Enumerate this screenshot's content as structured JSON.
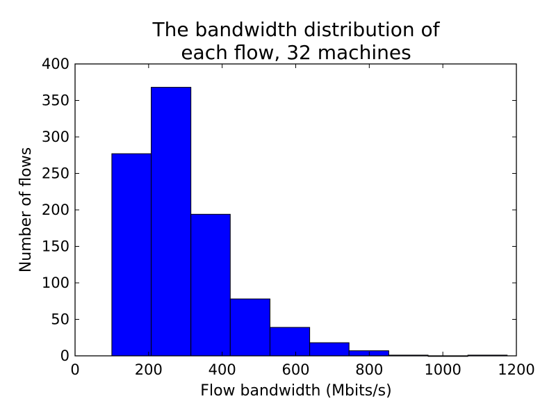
{
  "chart_data": {
    "type": "bar",
    "title_lines": [
      "The bandwidth distribution of",
      "each flow, 32 machines"
    ],
    "xlabel": "Flow bandwidth (Mbits/s)",
    "ylabel": "Number of flows",
    "xlim": [
      0,
      1200
    ],
    "ylim": [
      0,
      400
    ],
    "xticks": [
      0,
      200,
      400,
      600,
      800,
      1000,
      1200
    ],
    "yticks": [
      0,
      50,
      100,
      150,
      200,
      250,
      300,
      350,
      400
    ],
    "bar_color": "#0000ff",
    "grid": false,
    "bins": [
      {
        "x0": 100,
        "x1": 207,
        "value": 277
      },
      {
        "x0": 207,
        "x1": 315,
        "value": 368
      },
      {
        "x0": 315,
        "x1": 422,
        "value": 194
      },
      {
        "x0": 422,
        "x1": 530,
        "value": 78
      },
      {
        "x0": 530,
        "x1": 638,
        "value": 39
      },
      {
        "x0": 638,
        "x1": 745,
        "value": 18
      },
      {
        "x0": 745,
        "x1": 853,
        "value": 7
      },
      {
        "x0": 853,
        "x1": 960,
        "value": 1
      },
      {
        "x0": 960,
        "x1": 1068,
        "value": 0
      },
      {
        "x0": 1068,
        "x1": 1175,
        "value": 1
      }
    ]
  }
}
